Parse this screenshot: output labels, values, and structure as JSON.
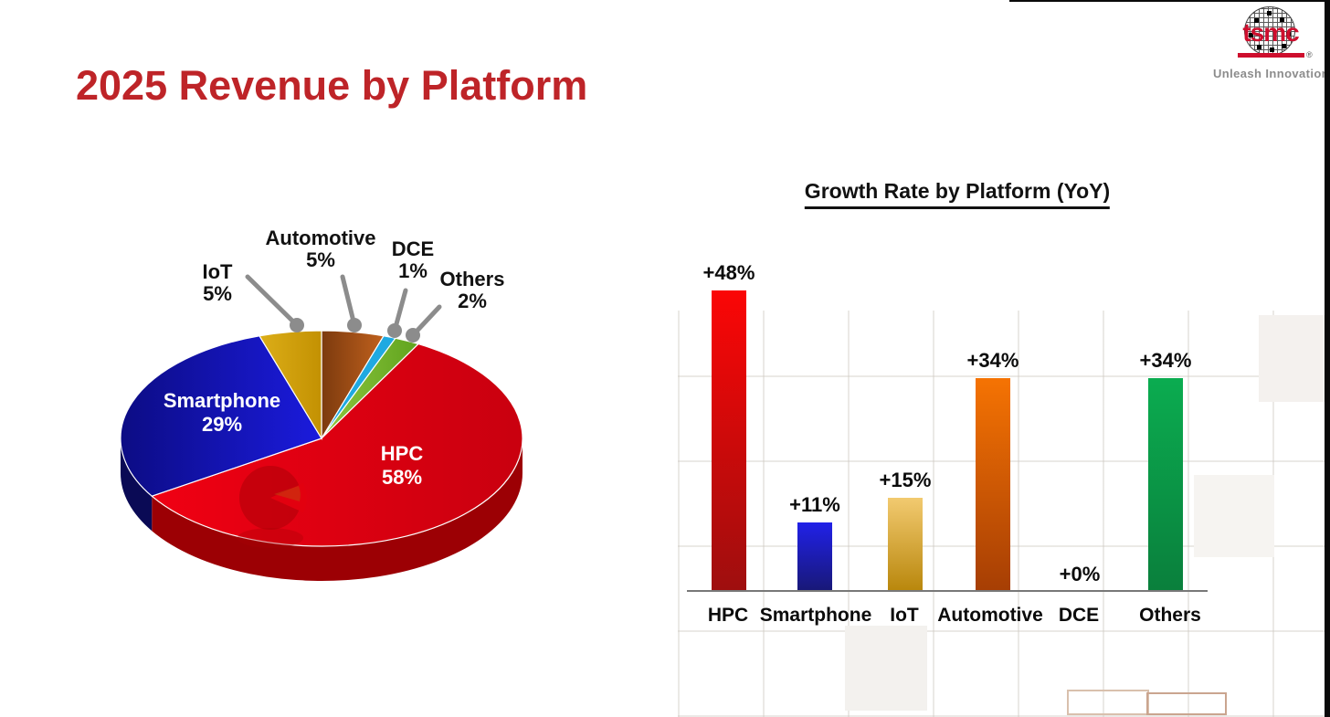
{
  "slide": {
    "title": "2025 Revenue by Platform"
  },
  "logo": {
    "brand": "tsmc",
    "registered": "®",
    "tagline": "Unleash Innovation"
  },
  "colors": {
    "title_red": "#BE2428",
    "logo_red": "#CE0E2D",
    "tagline_gray": "#8C8C8C",
    "leader_gray": "#8C8C8C",
    "axis_gray": "#787878"
  },
  "chart_data": [
    {
      "type": "pie",
      "title": "2025 Revenue by Platform",
      "unit": "percent",
      "start_angle_deg": 0,
      "direction": "clockwise",
      "slices": [
        {
          "label": "Automotive",
          "value": 5,
          "display": "5%",
          "color": "#7C3A0E",
          "color2": "#C0611D"
        },
        {
          "label": "DCE",
          "value": 1,
          "display": "1%",
          "color": "#1FA9E1",
          "color2": "#1FA9E1"
        },
        {
          "label": "Others",
          "value": 2,
          "display": "2%",
          "color": "#8DC63F",
          "color2": "#61A41E"
        },
        {
          "label": "HPC",
          "value": 58,
          "display": "58%",
          "color": "#F00013",
          "color2": "#C9000F",
          "side_color": "#9C0004",
          "label_color": "#FFFFFF"
        },
        {
          "label": "Smartphone",
          "value": 29,
          "display": "29%",
          "color": "#0C0C84",
          "color2": "#1B1BDD",
          "side_color": "#0A0A55",
          "label_color": "#FFFFFF"
        },
        {
          "label": "IoT",
          "value": 5,
          "display": "5%",
          "color": "#DCAE18",
          "color2": "#C39102"
        }
      ]
    },
    {
      "type": "bar",
      "title": "Growth Rate by Platform (YoY)",
      "categories": [
        "HPC",
        "Smartphone",
        "IoT",
        "Automotive",
        "DCE",
        "Others"
      ],
      "values": [
        48,
        11,
        15,
        34,
        0,
        34
      ],
      "value_labels": [
        "+48%",
        "+11%",
        "+15%",
        "+34%",
        "+0%",
        "+34%"
      ],
      "bar_colors_top": [
        "#FB0606",
        "#2121E8",
        "#F2CA70",
        "#F57303",
        null,
        "#0BAC50"
      ],
      "bar_colors_bottom": [
        "#9E0E0E",
        "#181875",
        "#B8860B",
        "#A63E04",
        null,
        "#0A7F3C"
      ],
      "ylim": [
        0,
        52
      ],
      "grid": false,
      "legend": false
    }
  ]
}
